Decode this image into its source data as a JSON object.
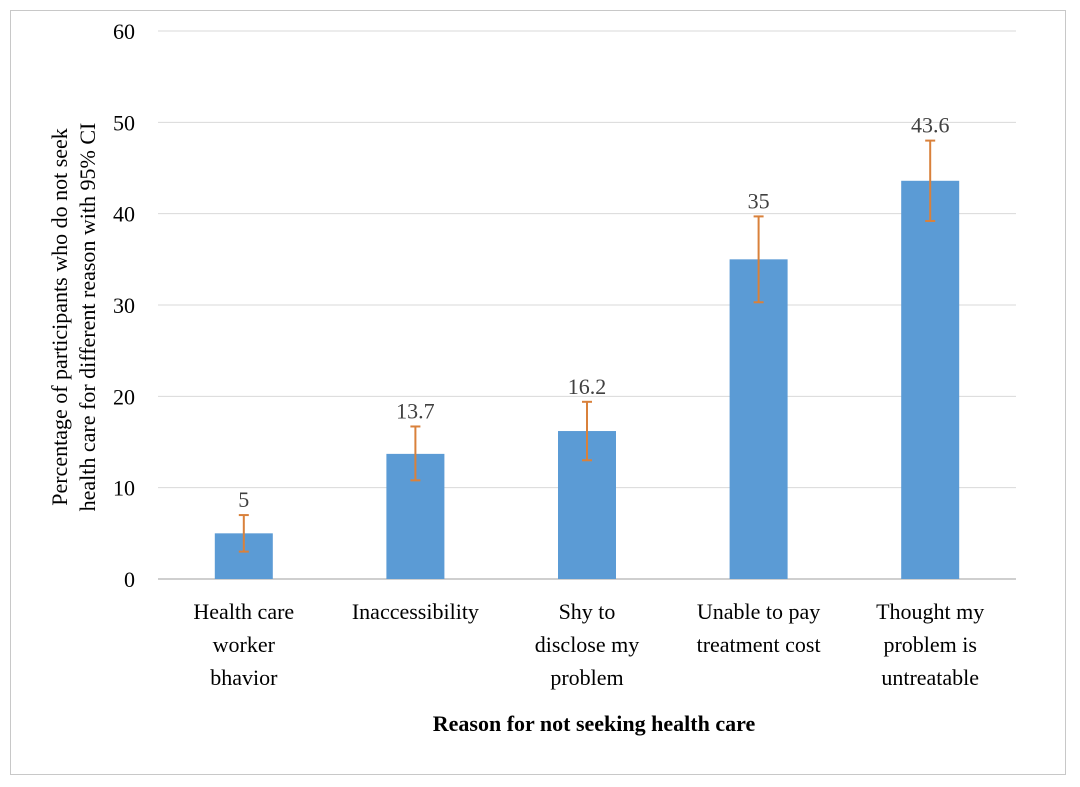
{
  "chart_data": {
    "type": "bar",
    "title": "",
    "xlabel": "Reason for not seeking health care",
    "ylabel_lines": [
      "Percentage of participants who do not seek",
      "health care for different reason with 95% CI"
    ],
    "ylim": [
      0,
      60
    ],
    "yticks": [
      0,
      10,
      20,
      30,
      40,
      50,
      60
    ],
    "grid": true,
    "legend": "none",
    "colors": {
      "bar": "#5B9BD5",
      "error_bar": "#D9813B",
      "grid": "#d9d9d9",
      "axis": "#bfbfbf"
    },
    "categories": [
      [
        "Health care",
        "worker",
        "bhavior"
      ],
      [
        "Inaccessibility"
      ],
      [
        "Shy to",
        "disclose my",
        "problem"
      ],
      [
        "Unable to pay",
        "treatment cost"
      ],
      [
        "Thought my",
        "problem is",
        "untreatable"
      ]
    ],
    "values": [
      5,
      13.7,
      16.2,
      35,
      43.6
    ],
    "value_labels": [
      "5",
      "13.7",
      "16.2",
      "35",
      "43.6"
    ],
    "ci_lower": [
      3,
      10.8,
      13,
      30.3,
      39.2
    ],
    "ci_upper": [
      7,
      16.7,
      19.4,
      39.7,
      48
    ]
  }
}
